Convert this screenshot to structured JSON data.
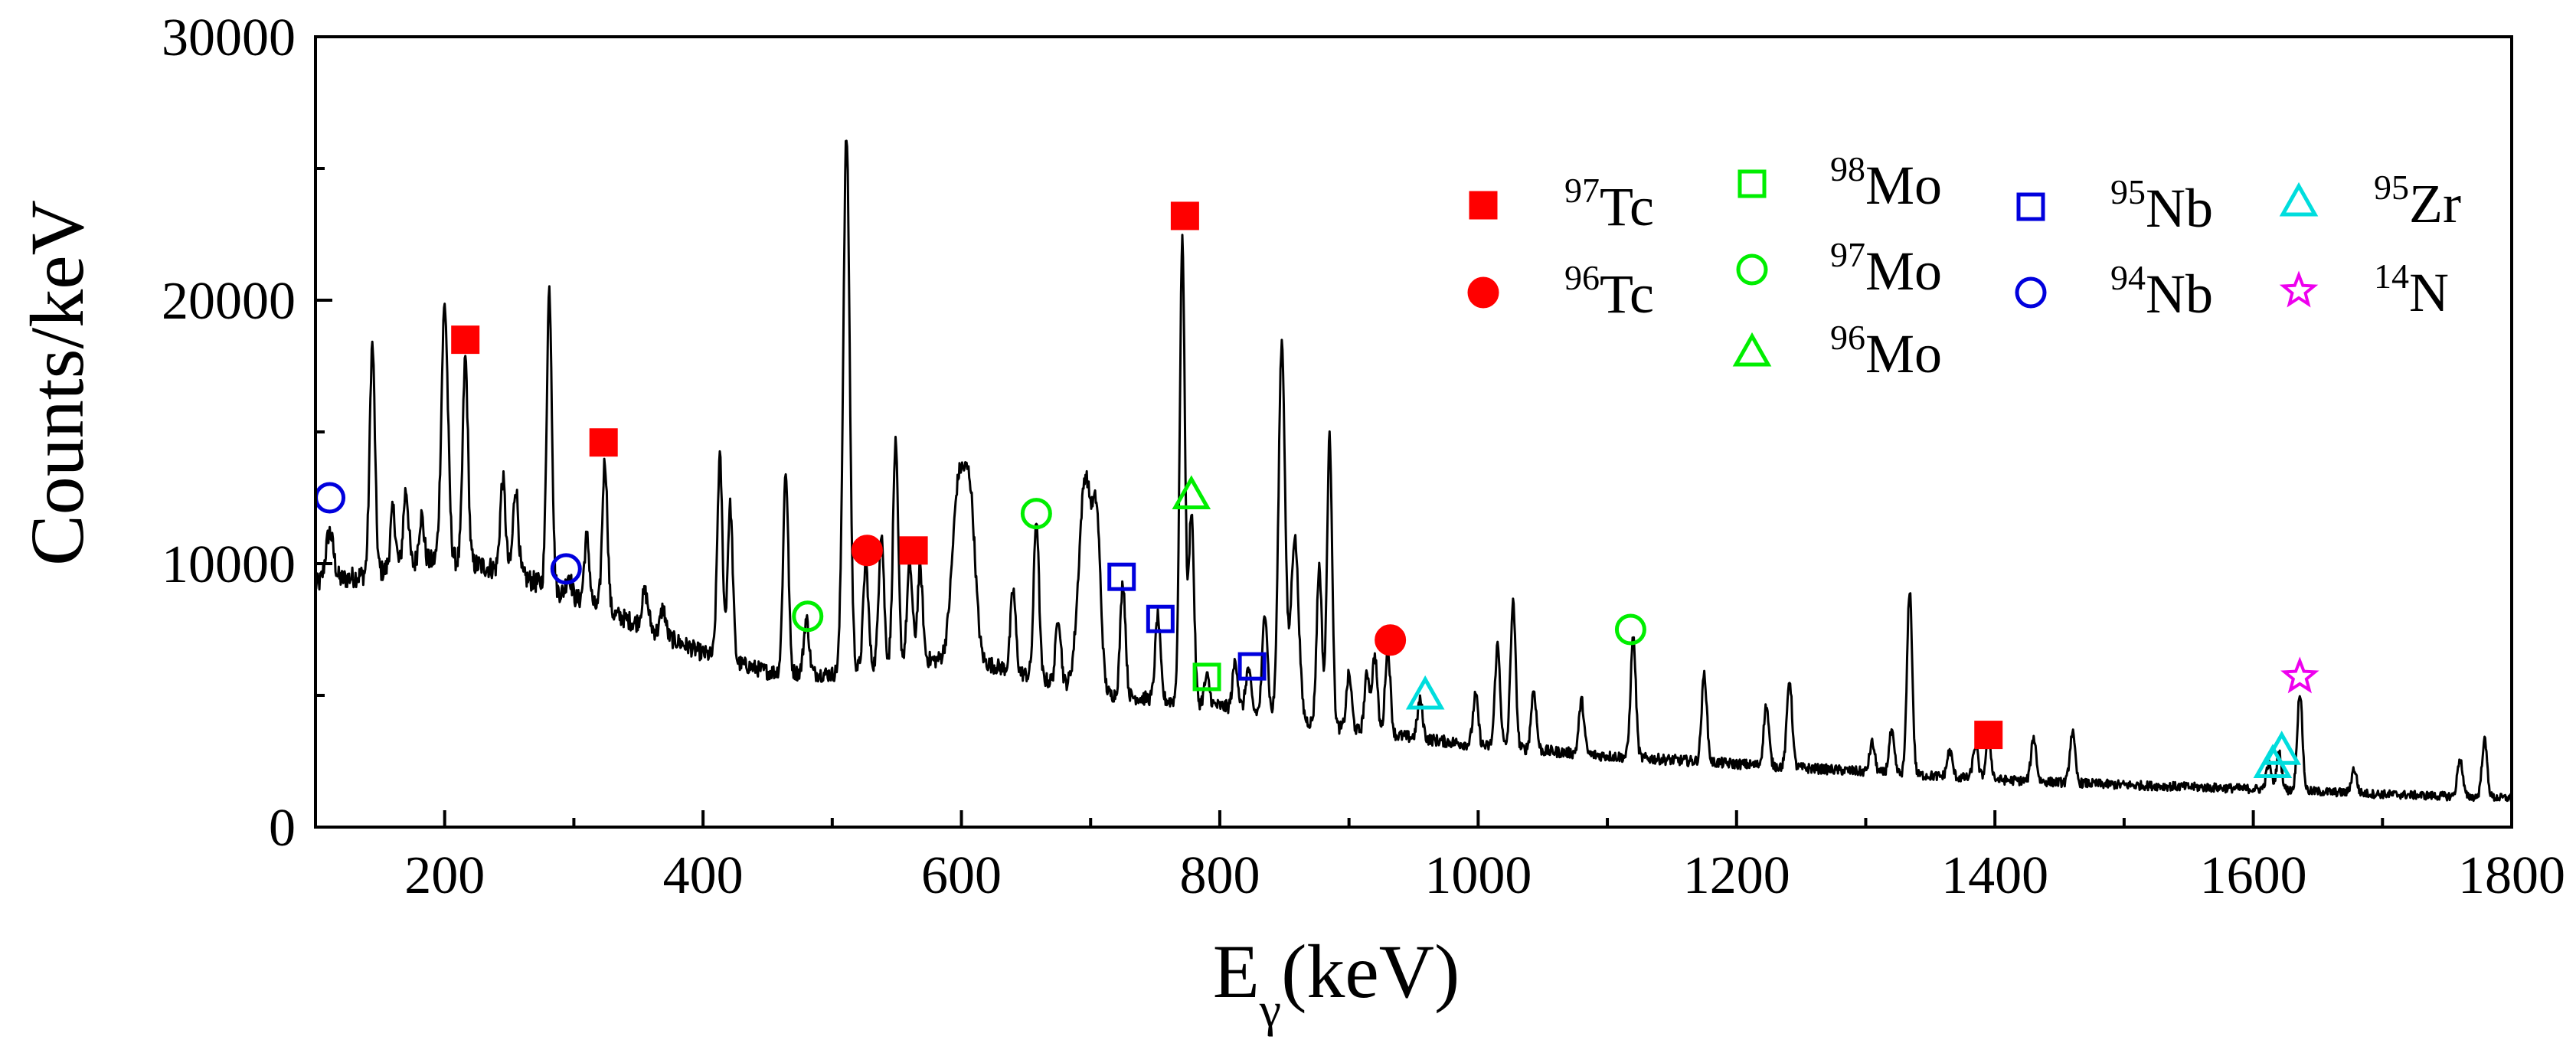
{
  "chart_data": {
    "type": "line",
    "xlabel": "E",
    "xlabel_sub": "γ",
    "xlabel_suffix": "(keV)",
    "ylabel": "Counts/keV",
    "xlim": [
      100,
      1800
    ],
    "ylim": [
      0,
      30000
    ],
    "xticks": [
      200,
      400,
      600,
      800,
      1000,
      1200,
      1400,
      1600,
      1800
    ],
    "yticks": [
      0,
      10000,
      20000,
      30000
    ],
    "xtick_labels": [
      "200",
      "400",
      "600",
      "800",
      "1000",
      "1200",
      "1400",
      "1600",
      "1800"
    ],
    "ytick_labels": [
      "0",
      "10000",
      "20000",
      "30000"
    ],
    "grid": false,
    "legend_position": "top-right",
    "colors": {
      "line": "#000000",
      "tc": "#ff0000",
      "mo": "#00ee00",
      "nb": "#0000dd",
      "zr": "#00dddd",
      "n": "#ee00ee"
    },
    "background": [
      [
        100,
        9200
      ],
      [
        150,
        9700
      ],
      [
        200,
        10200
      ],
      [
        250,
        9700
      ],
      [
        300,
        8700
      ],
      [
        350,
        7700
      ],
      [
        400,
        6600
      ],
      [
        450,
        5900
      ],
      [
        500,
        5800
      ],
      [
        560,
        6400
      ],
      [
        620,
        6200
      ],
      [
        700,
        5100
      ],
      [
        800,
        4600
      ],
      [
        900,
        3700
      ],
      [
        1000,
        3100
      ],
      [
        1100,
        2700
      ],
      [
        1200,
        2400
      ],
      [
        1300,
        2100
      ],
      [
        1400,
        1800
      ],
      [
        1500,
        1600
      ],
      [
        1600,
        1450
      ],
      [
        1700,
        1250
      ],
      [
        1800,
        1100
      ]
    ],
    "peaks": [
      [
        111,
        11200,
        3
      ],
      [
        144,
        18300,
        2
      ],
      [
        160,
        12000,
        2
      ],
      [
        170,
        12800,
        2
      ],
      [
        182,
        11800,
        2
      ],
      [
        200,
        19800,
        2.5
      ],
      [
        216,
        17800,
        2
      ],
      [
        245,
        13200,
        2
      ],
      [
        255,
        12900,
        2
      ],
      [
        281,
        20400,
        2
      ],
      [
        296,
        9600,
        2
      ],
      [
        310,
        11000,
        2
      ],
      [
        324,
        13900,
        2
      ],
      [
        355,
        8900,
        2.5
      ],
      [
        369,
        8300,
        2
      ],
      [
        413,
        14000,
        2
      ],
      [
        421,
        12200,
        2
      ],
      [
        464,
        13500,
        2
      ],
      [
        480,
        7900,
        2
      ],
      [
        511,
        26200,
        2.5
      ],
      [
        526,
        10000,
        2
      ],
      [
        538,
        11200,
        2
      ],
      [
        549,
        14500,
        2
      ],
      [
        560,
        10000,
        2
      ],
      [
        568,
        9800,
        2
      ],
      [
        598,
        13000,
        5
      ],
      [
        607,
        11700,
        4
      ],
      [
        640,
        9000,
        2
      ],
      [
        658,
        11700,
        2
      ],
      [
        675,
        8000,
        2
      ],
      [
        696,
        13300,
        5
      ],
      [
        705,
        10500,
        3
      ],
      [
        725,
        9300,
        2
      ],
      [
        752,
        8000,
        2
      ],
      [
        771,
        22200,
        2
      ],
      [
        778,
        12000,
        2
      ],
      [
        790,
        5700,
        2
      ],
      [
        812,
        6300,
        2
      ],
      [
        822,
        6000,
        2
      ],
      [
        835,
        8200,
        2
      ],
      [
        848,
        18400,
        2.5
      ],
      [
        858,
        11000,
        3
      ],
      [
        877,
        9900,
        2
      ],
      [
        885,
        14800,
        2
      ],
      [
        900,
        5800,
        2
      ],
      [
        914,
        5800,
        2
      ],
      [
        920,
        6500,
        2
      ],
      [
        930,
        6800,
        2
      ],
      [
        955,
        4800,
        2
      ],
      [
        998,
        5000,
        2
      ],
      [
        1015,
        6900,
        2
      ],
      [
        1027,
        8500,
        2
      ],
      [
        1043,
        5200,
        2
      ],
      [
        1080,
        4800,
        2
      ],
      [
        1120,
        7200,
        2
      ],
      [
        1175,
        5800,
        2
      ],
      [
        1223,
        4600,
        2
      ],
      [
        1241,
        5600,
        2
      ],
      [
        1305,
        3200,
        2
      ],
      [
        1320,
        3600,
        2
      ],
      [
        1334,
        9000,
        2
      ],
      [
        1365,
        2900,
        2
      ],
      [
        1385,
        3100,
        2
      ],
      [
        1395,
        3300,
        2
      ],
      [
        1430,
        3400,
        2
      ],
      [
        1460,
        3600,
        2
      ],
      [
        1612,
        2400,
        2
      ],
      [
        1620,
        2800,
        2
      ],
      [
        1636,
        5100,
        2
      ],
      [
        1678,
        2200,
        2
      ],
      [
        1760,
        2600,
        2
      ],
      [
        1779,
        3300,
        2
      ]
    ],
    "markers": [
      {
        "species": "Tc97",
        "x": 216,
        "y": 18500
      },
      {
        "species": "Tc97",
        "x": 323,
        "y": 14600
      },
      {
        "species": "Tc97",
        "x": 563,
        "y": 10500
      },
      {
        "species": "Tc97",
        "x": 773,
        "y": 23200
      },
      {
        "species": "Tc97",
        "x": 1395,
        "y": 3500
      },
      {
        "species": "Tc96",
        "x": 527,
        "y": 10500
      },
      {
        "species": "Tc96",
        "x": 932,
        "y": 7100
      },
      {
        "species": "Mo98",
        "x": 790,
        "y": 5700
      },
      {
        "species": "Mo97",
        "x": 481,
        "y": 8000
      },
      {
        "species": "Mo97",
        "x": 658,
        "y": 11900
      },
      {
        "species": "Mo97",
        "x": 1118,
        "y": 7500
      },
      {
        "species": "Mo96",
        "x": 778,
        "y": 12600
      },
      {
        "species": "Nb95",
        "x": 724,
        "y": 9500
      },
      {
        "species": "Nb95",
        "x": 754,
        "y": 7900
      },
      {
        "species": "Nb95",
        "x": 825,
        "y": 6100
      },
      {
        "species": "Nb94",
        "x": 111,
        "y": 12500
      },
      {
        "species": "Nb94",
        "x": 294,
        "y": 9800
      },
      {
        "species": "Zr95",
        "x": 959,
        "y": 5000
      },
      {
        "species": "Zr95",
        "x": 1615,
        "y": 2400
      },
      {
        "species": "Zr95",
        "x": 1622,
        "y": 2900
      },
      {
        "species": "N14",
        "x": 1636,
        "y": 5700
      }
    ],
    "legend": [
      {
        "species": "Tc97",
        "mass": "97",
        "element": "Tc",
        "shape": "square",
        "filled": true,
        "color": "#ff0000"
      },
      {
        "species": "Tc96",
        "mass": "96",
        "element": "Tc",
        "shape": "circle",
        "filled": true,
        "color": "#ff0000"
      },
      {
        "species": "Mo98",
        "mass": "98",
        "element": "Mo",
        "shape": "square",
        "filled": false,
        "color": "#00ee00"
      },
      {
        "species": "Mo97",
        "mass": "97",
        "element": "Mo",
        "shape": "circle",
        "filled": false,
        "color": "#00ee00"
      },
      {
        "species": "Mo96",
        "mass": "96",
        "element": "Mo",
        "shape": "triangle",
        "filled": false,
        "color": "#00ee00"
      },
      {
        "species": "Nb95",
        "mass": "95",
        "element": "Nb",
        "shape": "square",
        "filled": false,
        "color": "#0000dd"
      },
      {
        "species": "Nb94",
        "mass": "94",
        "element": "Nb",
        "shape": "circle",
        "filled": false,
        "color": "#0000dd"
      },
      {
        "species": "Zr95",
        "mass": "95",
        "element": "Zr",
        "shape": "triangle",
        "filled": false,
        "color": "#00dddd"
      },
      {
        "species": "N14",
        "mass": "14",
        "element": "N",
        "shape": "star",
        "filled": false,
        "color": "#ee00ee"
      }
    ]
  }
}
